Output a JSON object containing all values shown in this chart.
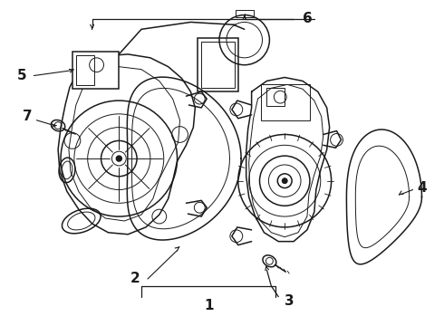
{
  "bg_color": "#ffffff",
  "line_color": "#1a1a1a",
  "lw_main": 1.1,
  "lw_thin": 0.7,
  "fig_width": 4.9,
  "fig_height": 3.6,
  "dpi": 100
}
